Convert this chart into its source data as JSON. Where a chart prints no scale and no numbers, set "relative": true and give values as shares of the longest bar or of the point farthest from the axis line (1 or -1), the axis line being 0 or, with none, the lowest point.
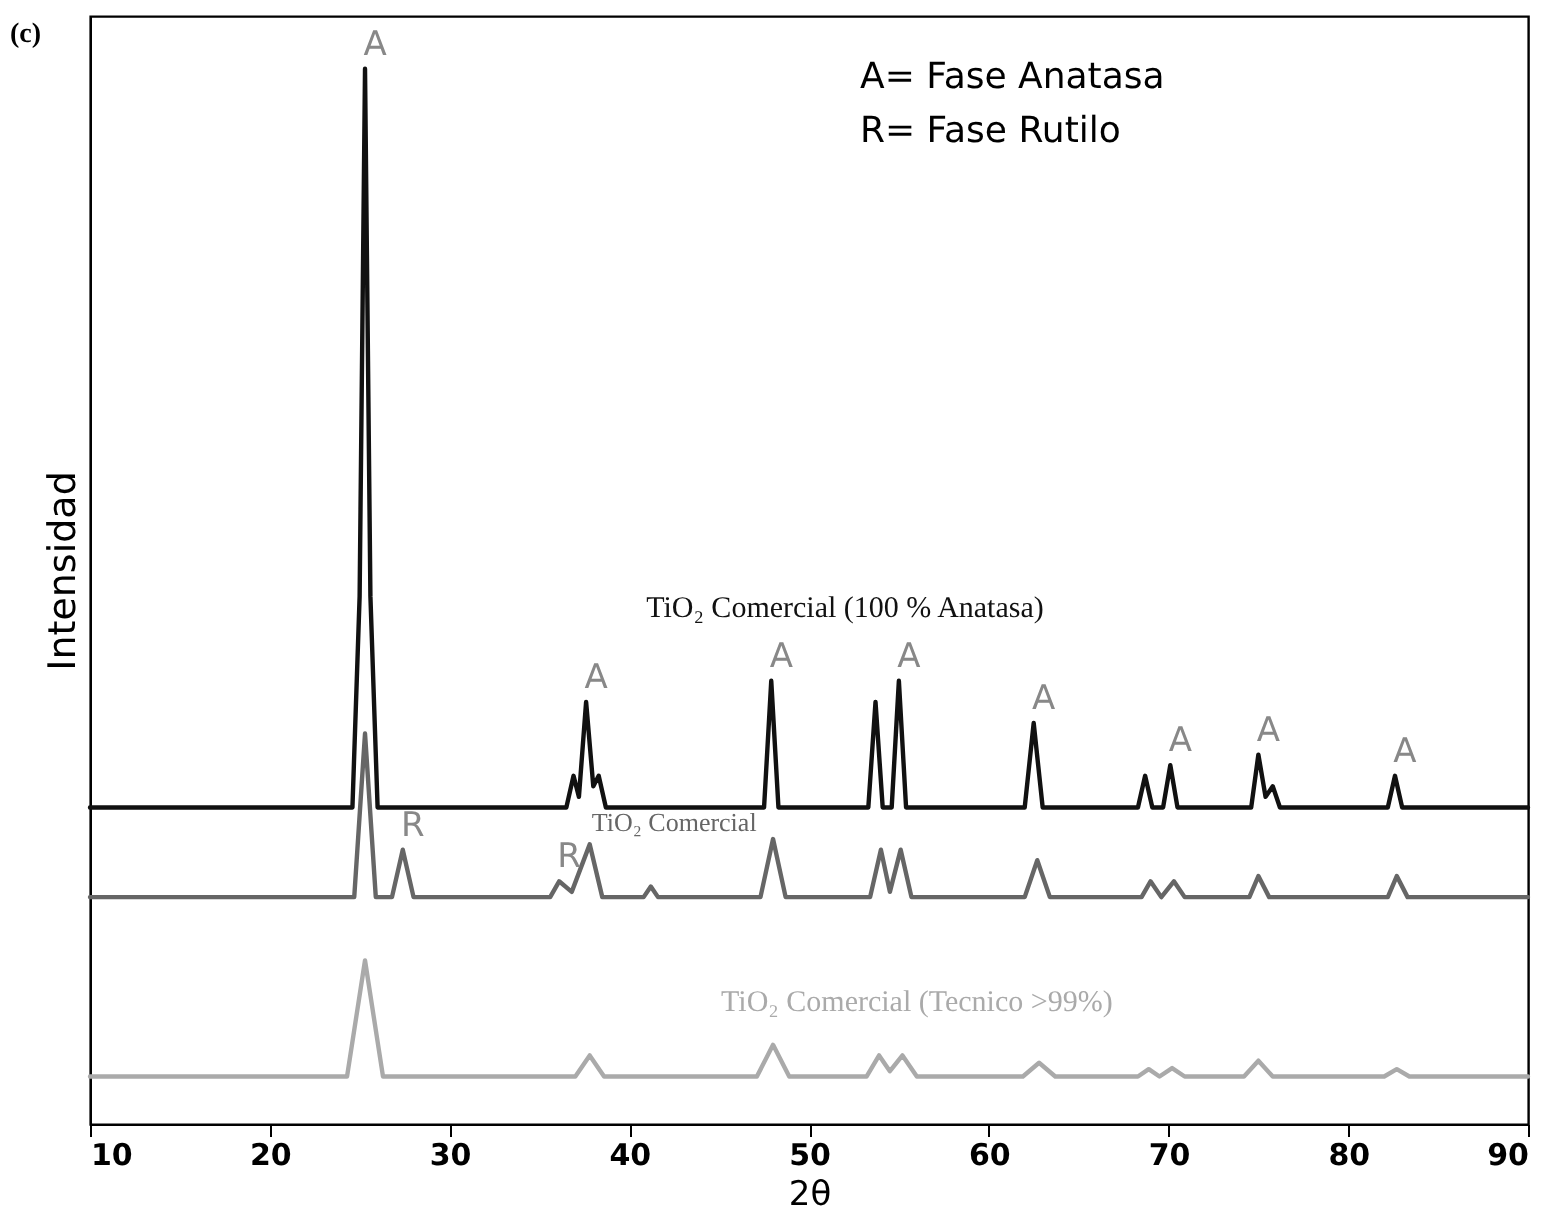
{
  "chart_data": {
    "type": "line",
    "relative": true,
    "xlabel": "2θ",
    "ylabel": "Intensidad",
    "xlim": [
      10,
      90
    ],
    "xticks": [
      10,
      20,
      30,
      40,
      50,
      60,
      70,
      80,
      90
    ],
    "grid": false,
    "marker": "none",
    "line_style": "solid",
    "series": [
      {
        "name": "TiO₂ Comercial (100 % Anatasa)",
        "color": "#111111",
        "x": [
          10,
          24.6,
          25.0,
          25.3,
          25.6,
          26,
          36.5,
          36.9,
          37.2,
          37.6,
          38.0,
          38.3,
          38.7,
          47.5,
          47.9,
          48.3,
          53.3,
          53.7,
          54.1,
          54.6,
          55.0,
          55.4,
          62.0,
          62.5,
          63.0,
          68.3,
          68.7,
          69.1,
          69.7,
          70.1,
          70.5,
          74.6,
          75.0,
          75.4,
          75.8,
          76.2,
          82.2,
          82.6,
          83.0,
          90
        ],
        "values": [
          0.3,
          0.3,
          0.5,
          1.0,
          0.5,
          0.3,
          0.3,
          0.33,
          0.31,
          0.4,
          0.32,
          0.33,
          0.3,
          0.3,
          0.42,
          0.3,
          0.3,
          0.4,
          0.3,
          0.3,
          0.42,
          0.3,
          0.3,
          0.38,
          0.3,
          0.3,
          0.33,
          0.3,
          0.3,
          0.34,
          0.3,
          0.3,
          0.35,
          0.31,
          0.32,
          0.3,
          0.3,
          0.33,
          0.3,
          0.3
        ]
      },
      {
        "name": "TiO₂ Comercial",
        "color": "#666666",
        "x": [
          10,
          24.7,
          25.3,
          25.9,
          26.8,
          27.4,
          28.0,
          35.6,
          36.1,
          36.8,
          37.8,
          38.5,
          40.8,
          41.2,
          41.6,
          47.3,
          48.0,
          48.7,
          53.4,
          54.0,
          54.5,
          55.1,
          55.7,
          62.0,
          62.7,
          63.4,
          68.5,
          69.0,
          69.6,
          70.3,
          70.9,
          74.5,
          75.0,
          75.6,
          82.2,
          82.7,
          83.3,
          90
        ],
        "values": [
          0.215,
          0.215,
          0.37,
          0.215,
          0.215,
          0.26,
          0.215,
          0.215,
          0.23,
          0.22,
          0.265,
          0.215,
          0.215,
          0.225,
          0.215,
          0.215,
          0.27,
          0.215,
          0.215,
          0.26,
          0.22,
          0.26,
          0.215,
          0.215,
          0.25,
          0.215,
          0.215,
          0.23,
          0.215,
          0.23,
          0.215,
          0.215,
          0.235,
          0.215,
          0.215,
          0.235,
          0.215,
          0.215
        ]
      },
      {
        "name": "TiO₂ Comercial (Tecnico >99%)",
        "color": "#aaaaaa",
        "x": [
          10,
          24.3,
          25.3,
          26.3,
          37.0,
          37.8,
          38.6,
          47.1,
          48.0,
          48.9,
          53.2,
          53.9,
          54.5,
          55.2,
          56.0,
          61.9,
          62.8,
          63.7,
          68.3,
          68.9,
          69.5,
          70.2,
          70.9,
          74.2,
          75.0,
          75.8,
          82.0,
          82.7,
          83.4,
          90
        ],
        "values": [
          0.045,
          0.045,
          0.155,
          0.045,
          0.045,
          0.065,
          0.045,
          0.045,
          0.075,
          0.045,
          0.045,
          0.065,
          0.05,
          0.065,
          0.045,
          0.045,
          0.058,
          0.045,
          0.045,
          0.052,
          0.045,
          0.053,
          0.045,
          0.045,
          0.06,
          0.045,
          0.045,
          0.052,
          0.045,
          0.045
        ]
      }
    ],
    "annotations": [
      "(c)",
      "A= Fase Anatasa",
      "R= Fase Rutilo",
      {
        "text": "A",
        "x": 25.3,
        "y": 1.0
      },
      {
        "text": "A",
        "x": 37.6,
        "y": 0.4
      },
      {
        "text": "A",
        "x": 47.9,
        "y": 0.42
      },
      {
        "text": "A",
        "x": 55.0,
        "y": 0.42
      },
      {
        "text": "A",
        "x": 62.5,
        "y": 0.38
      },
      {
        "text": "A",
        "x": 70.1,
        "y": 0.34
      },
      {
        "text": "A",
        "x": 75.0,
        "y": 0.35
      },
      {
        "text": "A",
        "x": 82.6,
        "y": 0.33
      },
      {
        "text": "R",
        "x": 27.4,
        "y": 0.26
      },
      {
        "text": "R",
        "x": 36.1,
        "y": 0.23
      }
    ]
  }
}
